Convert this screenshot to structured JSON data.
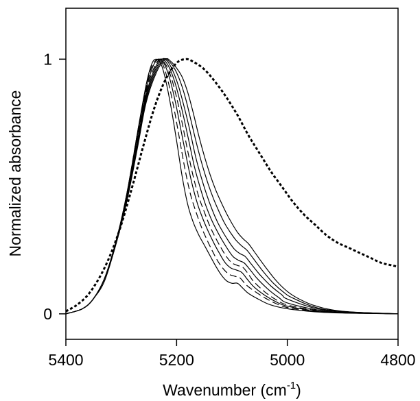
{
  "chart_data": {
    "type": "line",
    "title": "",
    "xlabel": "Wavenumber (cm",
    "xlabel_sup": "-1",
    "xlabel_close": ")",
    "ylabel": "Normalized absorbance",
    "xlim": [
      5400,
      4800
    ],
    "ylim": [
      -0.1,
      1.2
    ],
    "x_reversed": true,
    "x_ticks": [
      5400,
      5200,
      5000,
      4800
    ],
    "x_tick_labels": [
      "5400",
      "5200",
      "5000",
      "4800"
    ],
    "y_ticks": [
      0,
      1
    ],
    "y_tick_labels": [
      "0",
      "1"
    ],
    "grid": false,
    "legend": "none",
    "series": [
      {
        "style": "solid",
        "color": "#000000",
        "peak": 5237,
        "points": [
          [
            5400,
            0
          ],
          [
            5370,
            0.02
          ],
          [
            5350,
            0.06
          ],
          [
            5330,
            0.14
          ],
          [
            5310,
            0.28
          ],
          [
            5290,
            0.47
          ],
          [
            5270,
            0.72
          ],
          [
            5255,
            0.9
          ],
          [
            5245,
            0.98
          ],
          [
            5237,
            1.0
          ],
          [
            5228,
            0.98
          ],
          [
            5220,
            0.92
          ],
          [
            5210,
            0.81
          ],
          [
            5200,
            0.68
          ],
          [
            5190,
            0.54
          ],
          [
            5180,
            0.43
          ],
          [
            5170,
            0.36
          ],
          [
            5160,
            0.31
          ],
          [
            5150,
            0.27
          ],
          [
            5140,
            0.23
          ],
          [
            5130,
            0.19
          ],
          [
            5120,
            0.155
          ],
          [
            5110,
            0.13
          ],
          [
            5100,
            0.12
          ],
          [
            5090,
            0.12
          ],
          [
            5080,
            0.1
          ],
          [
            5070,
            0.08
          ],
          [
            5050,
            0.055
          ],
          [
            5030,
            0.035
          ],
          [
            5000,
            0.02
          ],
          [
            4950,
            0.008
          ],
          [
            4900,
            0.003
          ],
          [
            4800,
            0
          ]
        ]
      },
      {
        "style": "dashed",
        "color": "#000000",
        "peak": 5234,
        "points": [
          [
            5400,
            0
          ],
          [
            5370,
            0.02
          ],
          [
            5350,
            0.06
          ],
          [
            5330,
            0.14
          ],
          [
            5310,
            0.28
          ],
          [
            5290,
            0.47
          ],
          [
            5270,
            0.72
          ],
          [
            5255,
            0.89
          ],
          [
            5245,
            0.97
          ],
          [
            5234,
            1.0
          ],
          [
            5225,
            0.98
          ],
          [
            5215,
            0.91
          ],
          [
            5205,
            0.81
          ],
          [
            5195,
            0.69
          ],
          [
            5185,
            0.57
          ],
          [
            5175,
            0.47
          ],
          [
            5165,
            0.4
          ],
          [
            5155,
            0.34
          ],
          [
            5145,
            0.29
          ],
          [
            5135,
            0.245
          ],
          [
            5125,
            0.205
          ],
          [
            5115,
            0.175
          ],
          [
            5105,
            0.155
          ],
          [
            5095,
            0.148
          ],
          [
            5085,
            0.14
          ],
          [
            5075,
            0.115
          ],
          [
            5060,
            0.09
          ],
          [
            5040,
            0.062
          ],
          [
            5020,
            0.04
          ],
          [
            5000,
            0.025
          ],
          [
            4950,
            0.01
          ],
          [
            4900,
            0.004
          ],
          [
            4800,
            0
          ]
        ]
      },
      {
        "style": "solid",
        "color": "#000000",
        "peak": 5232,
        "points": [
          [
            5400,
            0
          ],
          [
            5370,
            0.02
          ],
          [
            5350,
            0.06
          ],
          [
            5330,
            0.14
          ],
          [
            5310,
            0.28
          ],
          [
            5290,
            0.47
          ],
          [
            5270,
            0.71
          ],
          [
            5255,
            0.88
          ],
          [
            5243,
            0.97
          ],
          [
            5232,
            1.0
          ],
          [
            5222,
            0.98
          ],
          [
            5212,
            0.92
          ],
          [
            5202,
            0.83
          ],
          [
            5192,
            0.72
          ],
          [
            5182,
            0.61
          ],
          [
            5172,
            0.51
          ],
          [
            5162,
            0.43
          ],
          [
            5152,
            0.37
          ],
          [
            5142,
            0.32
          ],
          [
            5132,
            0.275
          ],
          [
            5122,
            0.235
          ],
          [
            5112,
            0.2
          ],
          [
            5102,
            0.18
          ],
          [
            5092,
            0.172
          ],
          [
            5082,
            0.162
          ],
          [
            5072,
            0.135
          ],
          [
            5060,
            0.105
          ],
          [
            5040,
            0.072
          ],
          [
            5020,
            0.047
          ],
          [
            5000,
            0.03
          ],
          [
            4950,
            0.012
          ],
          [
            4900,
            0.004
          ],
          [
            4800,
            0
          ]
        ]
      },
      {
        "style": "dashed",
        "color": "#000000",
        "peak": 5230,
        "points": [
          [
            5400,
            0
          ],
          [
            5370,
            0.02
          ],
          [
            5350,
            0.06
          ],
          [
            5330,
            0.14
          ],
          [
            5310,
            0.28
          ],
          [
            5290,
            0.46
          ],
          [
            5270,
            0.7
          ],
          [
            5255,
            0.87
          ],
          [
            5242,
            0.96
          ],
          [
            5230,
            1.0
          ],
          [
            5220,
            0.98
          ],
          [
            5210,
            0.93
          ],
          [
            5200,
            0.85
          ],
          [
            5190,
            0.75
          ],
          [
            5180,
            0.64
          ],
          [
            5170,
            0.54
          ],
          [
            5160,
            0.46
          ],
          [
            5150,
            0.4
          ],
          [
            5140,
            0.345
          ],
          [
            5130,
            0.3
          ],
          [
            5120,
            0.26
          ],
          [
            5110,
            0.225
          ],
          [
            5100,
            0.2
          ],
          [
            5090,
            0.19
          ],
          [
            5080,
            0.182
          ],
          [
            5070,
            0.155
          ],
          [
            5060,
            0.125
          ],
          [
            5040,
            0.085
          ],
          [
            5020,
            0.055
          ],
          [
            5000,
            0.035
          ],
          [
            4950,
            0.014
          ],
          [
            4900,
            0.005
          ],
          [
            4800,
            0
          ]
        ]
      },
      {
        "style": "solid",
        "color": "#000000",
        "peak": 5228,
        "points": [
          [
            5400,
            0
          ],
          [
            5370,
            0.02
          ],
          [
            5350,
            0.06
          ],
          [
            5330,
            0.14
          ],
          [
            5310,
            0.28
          ],
          [
            5290,
            0.46
          ],
          [
            5270,
            0.69
          ],
          [
            5255,
            0.86
          ],
          [
            5240,
            0.96
          ],
          [
            5228,
            1.0
          ],
          [
            5218,
            0.985
          ],
          [
            5208,
            0.94
          ],
          [
            5198,
            0.87
          ],
          [
            5188,
            0.78
          ],
          [
            5178,
            0.68
          ],
          [
            5168,
            0.58
          ],
          [
            5158,
            0.5
          ],
          [
            5148,
            0.43
          ],
          [
            5138,
            0.375
          ],
          [
            5128,
            0.33
          ],
          [
            5118,
            0.29
          ],
          [
            5108,
            0.255
          ],
          [
            5098,
            0.225
          ],
          [
            5088,
            0.21
          ],
          [
            5078,
            0.2
          ],
          [
            5068,
            0.175
          ],
          [
            5055,
            0.14
          ],
          [
            5035,
            0.097
          ],
          [
            5015,
            0.063
          ],
          [
            5000,
            0.043
          ],
          [
            4950,
            0.017
          ],
          [
            4900,
            0.006
          ],
          [
            4800,
            0
          ]
        ]
      },
      {
        "style": "solid",
        "color": "#000000",
        "peak": 5226,
        "points": [
          [
            5400,
            0
          ],
          [
            5370,
            0.02
          ],
          [
            5350,
            0.06
          ],
          [
            5330,
            0.14
          ],
          [
            5310,
            0.27
          ],
          [
            5290,
            0.45
          ],
          [
            5270,
            0.68
          ],
          [
            5255,
            0.85
          ],
          [
            5240,
            0.95
          ],
          [
            5226,
            1.0
          ],
          [
            5216,
            0.99
          ],
          [
            5206,
            0.95
          ],
          [
            5196,
            0.89
          ],
          [
            5186,
            0.81
          ],
          [
            5176,
            0.72
          ],
          [
            5166,
            0.62
          ],
          [
            5156,
            0.54
          ],
          [
            5146,
            0.47
          ],
          [
            5136,
            0.41
          ],
          [
            5126,
            0.36
          ],
          [
            5116,
            0.32
          ],
          [
            5106,
            0.285
          ],
          [
            5096,
            0.255
          ],
          [
            5086,
            0.237
          ],
          [
            5076,
            0.225
          ],
          [
            5066,
            0.198
          ],
          [
            5050,
            0.155
          ],
          [
            5030,
            0.11
          ],
          [
            5010,
            0.075
          ],
          [
            5000,
            0.058
          ],
          [
            4950,
            0.022
          ],
          [
            4900,
            0.008
          ],
          [
            4800,
            0
          ]
        ]
      },
      {
        "style": "solid",
        "color": "#000000",
        "peak": 5223,
        "points": [
          [
            5400,
            0
          ],
          [
            5370,
            0.02
          ],
          [
            5350,
            0.06
          ],
          [
            5330,
            0.14
          ],
          [
            5310,
            0.27
          ],
          [
            5290,
            0.45
          ],
          [
            5270,
            0.67
          ],
          [
            5255,
            0.84
          ],
          [
            5238,
            0.95
          ],
          [
            5223,
            1.0
          ],
          [
            5213,
            0.99
          ],
          [
            5203,
            0.96
          ],
          [
            5193,
            0.91
          ],
          [
            5183,
            0.84
          ],
          [
            5173,
            0.75
          ],
          [
            5163,
            0.66
          ],
          [
            5153,
            0.58
          ],
          [
            5143,
            0.51
          ],
          [
            5133,
            0.45
          ],
          [
            5123,
            0.4
          ],
          [
            5113,
            0.355
          ],
          [
            5103,
            0.32
          ],
          [
            5093,
            0.29
          ],
          [
            5083,
            0.268
          ],
          [
            5073,
            0.25
          ],
          [
            5063,
            0.222
          ],
          [
            5045,
            0.17
          ],
          [
            5025,
            0.12
          ],
          [
            5005,
            0.082
          ],
          [
            4990,
            0.062
          ],
          [
            4950,
            0.026
          ],
          [
            4900,
            0.009
          ],
          [
            4800,
            0
          ]
        ]
      },
      {
        "style": "solid",
        "color": "#000000",
        "peak": 5220,
        "points": [
          [
            5400,
            0
          ],
          [
            5370,
            0.02
          ],
          [
            5350,
            0.06
          ],
          [
            5330,
            0.13
          ],
          [
            5310,
            0.27
          ],
          [
            5290,
            0.44
          ],
          [
            5270,
            0.66
          ],
          [
            5255,
            0.83
          ],
          [
            5236,
            0.95
          ],
          [
            5220,
            1.0
          ],
          [
            5210,
            0.99
          ],
          [
            5200,
            0.965
          ],
          [
            5190,
            0.93
          ],
          [
            5180,
            0.87
          ],
          [
            5170,
            0.79
          ],
          [
            5160,
            0.7
          ],
          [
            5150,
            0.62
          ],
          [
            5140,
            0.55
          ],
          [
            5130,
            0.49
          ],
          [
            5120,
            0.44
          ],
          [
            5110,
            0.395
          ],
          [
            5100,
            0.355
          ],
          [
            5090,
            0.32
          ],
          [
            5080,
            0.295
          ],
          [
            5070,
            0.275
          ],
          [
            5060,
            0.245
          ],
          [
            5040,
            0.185
          ],
          [
            5020,
            0.13
          ],
          [
            5000,
            0.088
          ],
          [
            4980,
            0.06
          ],
          [
            4950,
            0.032
          ],
          [
            4900,
            0.01
          ],
          [
            4800,
            0
          ]
        ]
      },
      {
        "style": "dotted",
        "color": "#000000",
        "peak": 5183,
        "points": [
          [
            5400,
            0.01
          ],
          [
            5380,
            0.035
          ],
          [
            5360,
            0.075
          ],
          [
            5340,
            0.14
          ],
          [
            5320,
            0.23
          ],
          [
            5300,
            0.35
          ],
          [
            5280,
            0.5
          ],
          [
            5260,
            0.66
          ],
          [
            5240,
            0.81
          ],
          [
            5220,
            0.92
          ],
          [
            5200,
            0.985
          ],
          [
            5183,
            1.0
          ],
          [
            5170,
            0.99
          ],
          [
            5150,
            0.96
          ],
          [
            5130,
            0.91
          ],
          [
            5110,
            0.85
          ],
          [
            5090,
            0.78
          ],
          [
            5070,
            0.7
          ],
          [
            5050,
            0.63
          ],
          [
            5030,
            0.56
          ],
          [
            5010,
            0.5
          ],
          [
            4990,
            0.44
          ],
          [
            4970,
            0.39
          ],
          [
            4950,
            0.35
          ],
          [
            4930,
            0.31
          ],
          [
            4910,
            0.28
          ],
          [
            4890,
            0.26
          ],
          [
            4870,
            0.24
          ],
          [
            4850,
            0.22
          ],
          [
            4830,
            0.2
          ],
          [
            4810,
            0.19
          ],
          [
            4800,
            0.185
          ]
        ]
      }
    ]
  }
}
